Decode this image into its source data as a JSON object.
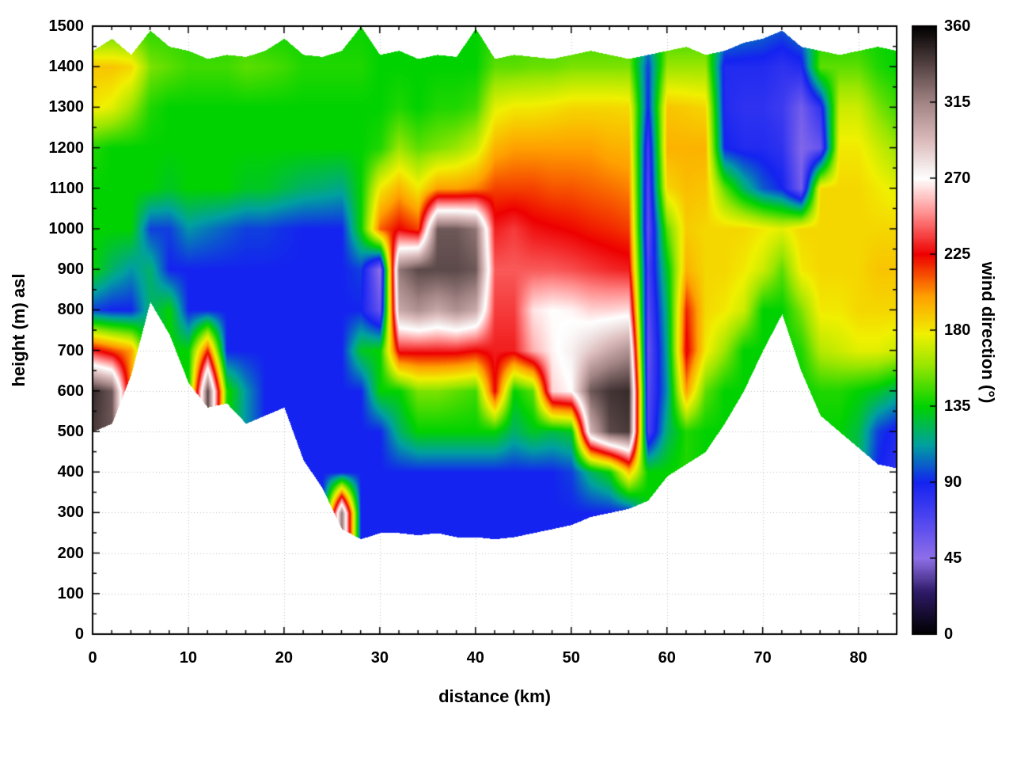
{
  "x_axis": {
    "label": "distance (km)",
    "min": 0,
    "max": 84,
    "major_ticks": [
      0,
      10,
      20,
      30,
      40,
      50,
      60,
      70,
      80
    ],
    "minor_step_km": 2
  },
  "y_axis": {
    "label": "height (m) asl",
    "min": 0,
    "max": 1500,
    "major_ticks": [
      0,
      100,
      200,
      300,
      400,
      500,
      600,
      700,
      800,
      900,
      1000,
      1100,
      1200,
      1300,
      1400,
      1500
    ],
    "minor_step_m": 50
  },
  "colorbar": {
    "label": "wind direction (°)",
    "min": 0,
    "max": 360,
    "ticks": [
      0,
      45,
      90,
      135,
      180,
      225,
      270,
      315,
      360
    ]
  },
  "chart_data": {
    "type": "heatmap",
    "title": "",
    "x_step_km": 2,
    "y_step_m": 100,
    "x_km": [
      0,
      2,
      4,
      6,
      8,
      10,
      12,
      14,
      16,
      18,
      20,
      22,
      24,
      26,
      28,
      30,
      32,
      34,
      36,
      38,
      40,
      42,
      44,
      46,
      48,
      50,
      52,
      54,
      56,
      58,
      60,
      62,
      64,
      66,
      68,
      70,
      72,
      74,
      76,
      78,
      80,
      82,
      84
    ],
    "y_m": [
      0,
      100,
      200,
      300,
      400,
      500,
      600,
      700,
      800,
      900,
      1000,
      1100,
      1200,
      1300,
      1400,
      1500
    ],
    "terrain_m": [
      500,
      520,
      640,
      820,
      740,
      620,
      560,
      570,
      520,
      540,
      560,
      430,
      360,
      260,
      235,
      250,
      250,
      245,
      250,
      240,
      240,
      235,
      240,
      250,
      260,
      270,
      290,
      300,
      310,
      330,
      390,
      420,
      450,
      520,
      600,
      700,
      790,
      650,
      540,
      500,
      460,
      420,
      410
    ],
    "top_m": [
      1440,
      1470,
      1430,
      1490,
      1450,
      1440,
      1420,
      1430,
      1425,
      1440,
      1470,
      1430,
      1425,
      1440,
      1500,
      1430,
      1440,
      1420,
      1430,
      1425,
      1495,
      1420,
      1430,
      1425,
      1420,
      1430,
      1440,
      1430,
      1420,
      1430,
      1440,
      1450,
      1430,
      1440,
      1460,
      1470,
      1490,
      1450,
      1440,
      1430,
      1440,
      1450,
      1440
    ],
    "direction_deg": [
      [
        340,
        340,
        340,
        340,
        340,
        340,
        345,
        230,
        95,
        135,
        135,
        135,
        140,
        180,
        190,
        140
      ],
      [
        330,
        330,
        330,
        330,
        330,
        330,
        330,
        215,
        90,
        120,
        135,
        135,
        135,
        175,
        190,
        140
      ],
      [
        200,
        200,
        200,
        200,
        200,
        200,
        200,
        200,
        90,
        110,
        135,
        135,
        135,
        160,
        185,
        140
      ],
      [
        120,
        120,
        120,
        120,
        120,
        120,
        120,
        120,
        120,
        120,
        95,
        135,
        135,
        140,
        155,
        140
      ],
      [
        135,
        135,
        135,
        135,
        135,
        135,
        135,
        135,
        135,
        90,
        95,
        130,
        135,
        135,
        150,
        140
      ],
      [
        135,
        135,
        135,
        135,
        135,
        135,
        135,
        135,
        90,
        90,
        110,
        135,
        135,
        135,
        145,
        140
      ],
      [
        335,
        335,
        335,
        335,
        335,
        335,
        335,
        220,
        90,
        90,
        105,
        135,
        135,
        135,
        145,
        140
      ],
      [
        135,
        135,
        135,
        135,
        135,
        135,
        140,
        90,
        90,
        90,
        100,
        135,
        135,
        135,
        145,
        140
      ],
      [
        110,
        110,
        110,
        110,
        110,
        110,
        110,
        90,
        90,
        90,
        95,
        130,
        135,
        135,
        150,
        138
      ],
      [
        90,
        90,
        90,
        90,
        90,
        90,
        90,
        90,
        90,
        90,
        95,
        130,
        135,
        135,
        148,
        136
      ],
      [
        90,
        90,
        90,
        90,
        90,
        90,
        90,
        90,
        90,
        90,
        92,
        125,
        135,
        135,
        145,
        136
      ],
      [
        90,
        90,
        90,
        90,
        90,
        90,
        90,
        90,
        90,
        90,
        90,
        120,
        135,
        135,
        140,
        136
      ],
      [
        90,
        90,
        90,
        90,
        90,
        90,
        90,
        90,
        90,
        90,
        90,
        118,
        135,
        135,
        140,
        136
      ],
      [
        320,
        320,
        320,
        320,
        90,
        90,
        90,
        90,
        90,
        90,
        90,
        115,
        135,
        135,
        140,
        136
      ],
      [
        90,
        90,
        90,
        90,
        90,
        90,
        90,
        130,
        90,
        95,
        135,
        135,
        135,
        135,
        140,
        136
      ],
      [
        90,
        90,
        90,
        90,
        90,
        90,
        135,
        135,
        60,
        45,
        210,
        180,
        140,
        135,
        135,
        135
      ],
      [
        90,
        90,
        90,
        90,
        90,
        120,
        135,
        230,
        300,
        320,
        225,
        195,
        160,
        140,
        135,
        135
      ],
      [
        90,
        90,
        90,
        90,
        90,
        135,
        155,
        230,
        310,
        335,
        215,
        180,
        150,
        135,
        135,
        135
      ],
      [
        90,
        90,
        90,
        90,
        90,
        135,
        155,
        230,
        300,
        335,
        330,
        200,
        155,
        140,
        135,
        135
      ],
      [
        90,
        90,
        90,
        90,
        90,
        135,
        150,
        230,
        310,
        335,
        330,
        200,
        160,
        140,
        135,
        135
      ],
      [
        90,
        90,
        90,
        90,
        90,
        135,
        145,
        225,
        300,
        330,
        320,
        205,
        170,
        145,
        135,
        135
      ],
      [
        90,
        90,
        90,
        90,
        90,
        135,
        225,
        230,
        235,
        240,
        230,
        215,
        195,
        175,
        150,
        140
      ],
      [
        90,
        90,
        90,
        90,
        90,
        120,
        135,
        230,
        235,
        240,
        235,
        215,
        200,
        180,
        150,
        140
      ],
      [
        90,
        90,
        90,
        90,
        90,
        130,
        150,
        255,
        265,
        240,
        228,
        215,
        200,
        180,
        152,
        140
      ],
      [
        90,
        90,
        90,
        90,
        90,
        125,
        262,
        268,
        270,
        240,
        226,
        212,
        200,
        182,
        152,
        140
      ],
      [
        90,
        90,
        90,
        90,
        95,
        130,
        270,
        275,
        268,
        238,
        224,
        212,
        200,
        185,
        155,
        140
      ],
      [
        90,
        90,
        90,
        90,
        120,
        295,
        330,
        288,
        262,
        235,
        221,
        210,
        200,
        185,
        155,
        140
      ],
      [
        90,
        90,
        90,
        90,
        135,
        335,
        342,
        300,
        262,
        232,
        219,
        208,
        196,
        185,
        155,
        140
      ],
      [
        90,
        90,
        90,
        90,
        190,
        340,
        345,
        310,
        264,
        230,
        216,
        205,
        195,
        184,
        155,
        140
      ],
      [
        135,
        135,
        135,
        135,
        135,
        70,
        65,
        60,
        65,
        70,
        62,
        66,
        72,
        90,
        95,
        120
      ],
      [
        135,
        135,
        135,
        135,
        135,
        120,
        110,
        115,
        120,
        130,
        150,
        185,
        195,
        190,
        160,
        140
      ],
      [
        140,
        140,
        140,
        140,
        140,
        140,
        200,
        228,
        220,
        195,
        188,
        192,
        195,
        188,
        160,
        140
      ],
      [
        135,
        135,
        135,
        135,
        135,
        135,
        150,
        180,
        185,
        185,
        185,
        190,
        195,
        185,
        160,
        140
      ],
      [
        135,
        135,
        135,
        135,
        135,
        135,
        135,
        160,
        180,
        185,
        185,
        150,
        90,
        85,
        85,
        115
      ],
      [
        135,
        135,
        135,
        135,
        135,
        135,
        135,
        135,
        170,
        180,
        185,
        120,
        85,
        80,
        85,
        110
      ],
      [
        135,
        135,
        135,
        135,
        135,
        135,
        135,
        135,
        135,
        170,
        180,
        100,
        85,
        80,
        85,
        105
      ],
      [
        135,
        135,
        135,
        135,
        135,
        135,
        135,
        135,
        135,
        150,
        175,
        90,
        80,
        75,
        80,
        100
      ],
      [
        135,
        135,
        135,
        135,
        135,
        135,
        135,
        140,
        155,
        180,
        185,
        55,
        50,
        55,
        85,
        110
      ],
      [
        135,
        135,
        135,
        135,
        135,
        135,
        140,
        165,
        180,
        185,
        185,
        185,
        60,
        80,
        150,
        135
      ],
      [
        135,
        135,
        135,
        135,
        135,
        135,
        140,
        170,
        180,
        185,
        185,
        185,
        180,
        170,
        150,
        135
      ],
      [
        120,
        120,
        120,
        120,
        120,
        125,
        135,
        175,
        185,
        185,
        185,
        185,
        180,
        170,
        150,
        135
      ],
      [
        90,
        90,
        90,
        90,
        90,
        95,
        130,
        175,
        185,
        190,
        185,
        180,
        170,
        155,
        140,
        135
      ],
      [
        80,
        80,
        80,
        80,
        80,
        85,
        120,
        170,
        185,
        190,
        185,
        175,
        160,
        145,
        135,
        135
      ]
    ],
    "palette_stops": [
      [
        0,
        "#000000"
      ],
      [
        25,
        "#2e1a66"
      ],
      [
        45,
        "#8f6fe8"
      ],
      [
        70,
        "#4a43f0"
      ],
      [
        90,
        "#1423f0"
      ],
      [
        112,
        "#00a0a0"
      ],
      [
        135,
        "#00d200"
      ],
      [
        160,
        "#9ce600"
      ],
      [
        178,
        "#f0f000"
      ],
      [
        200,
        "#ffa000"
      ],
      [
        225,
        "#ee0000"
      ],
      [
        248,
        "#ff8888"
      ],
      [
        270,
        "#ffffff"
      ],
      [
        292,
        "#dcbcbc"
      ],
      [
        315,
        "#a28484"
      ],
      [
        340,
        "#4a3a3a"
      ],
      [
        360,
        "#000000"
      ]
    ],
    "grid": {
      "shown": true,
      "style": "dotted",
      "color": "#c0c0c0"
    }
  }
}
